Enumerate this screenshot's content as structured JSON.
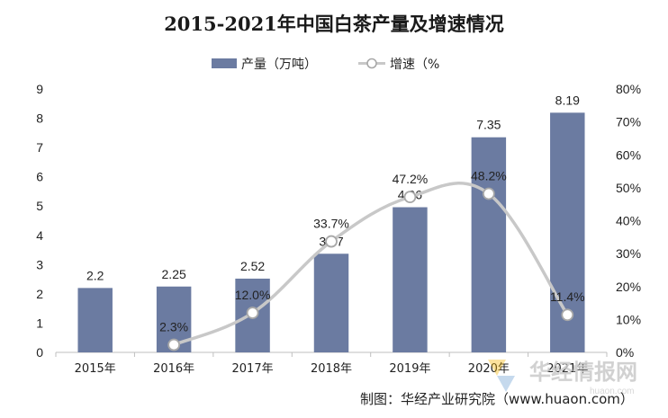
{
  "chart_data": {
    "type": "bar",
    "title": "2015-2021年中国白茶产量及增速情况",
    "categories": [
      "2015年",
      "2016年",
      "2017年",
      "2018年",
      "2019年",
      "2020年",
      "2021年"
    ],
    "series": [
      {
        "name": "产量（万吨）",
        "type": "bar",
        "axis": "left",
        "values": [
          2.2,
          2.25,
          2.52,
          3.37,
          4.96,
          7.35,
          8.19
        ],
        "labels": [
          "2.2",
          "2.25",
          "2.52",
          "3.37",
          "4.96",
          "7.35",
          "8.19"
        ],
        "color": "#6b7ba1"
      },
      {
        "name": "增速（%",
        "type": "line",
        "axis": "right",
        "values": [
          null,
          2.3,
          12.0,
          33.7,
          47.2,
          48.2,
          11.4
        ],
        "labels": [
          "",
          "2.3%",
          "12.0%",
          "33.7%",
          "47.2%",
          "48.2%",
          "11.4%"
        ],
        "color": "#c8c8c8"
      }
    ],
    "y_left": {
      "ylim": [
        0,
        9
      ],
      "ticks": [
        "0",
        "1",
        "2",
        "3",
        "4",
        "5",
        "6",
        "7",
        "8",
        "9"
      ]
    },
    "y_right": {
      "ylim": [
        0,
        80
      ],
      "ticks": [
        "0%",
        "10%",
        "20%",
        "30%",
        "40%",
        "50%",
        "60%",
        "70%",
        "80%"
      ]
    },
    "grid": false,
    "legend_position": "top-center"
  },
  "source": "制图：华经产业研究院（www.huaon.com）",
  "watermark": {
    "brand": "华经情报网",
    "url": "huaon.com",
    "colors": [
      "#f4b400",
      "#3b82c4"
    ]
  }
}
